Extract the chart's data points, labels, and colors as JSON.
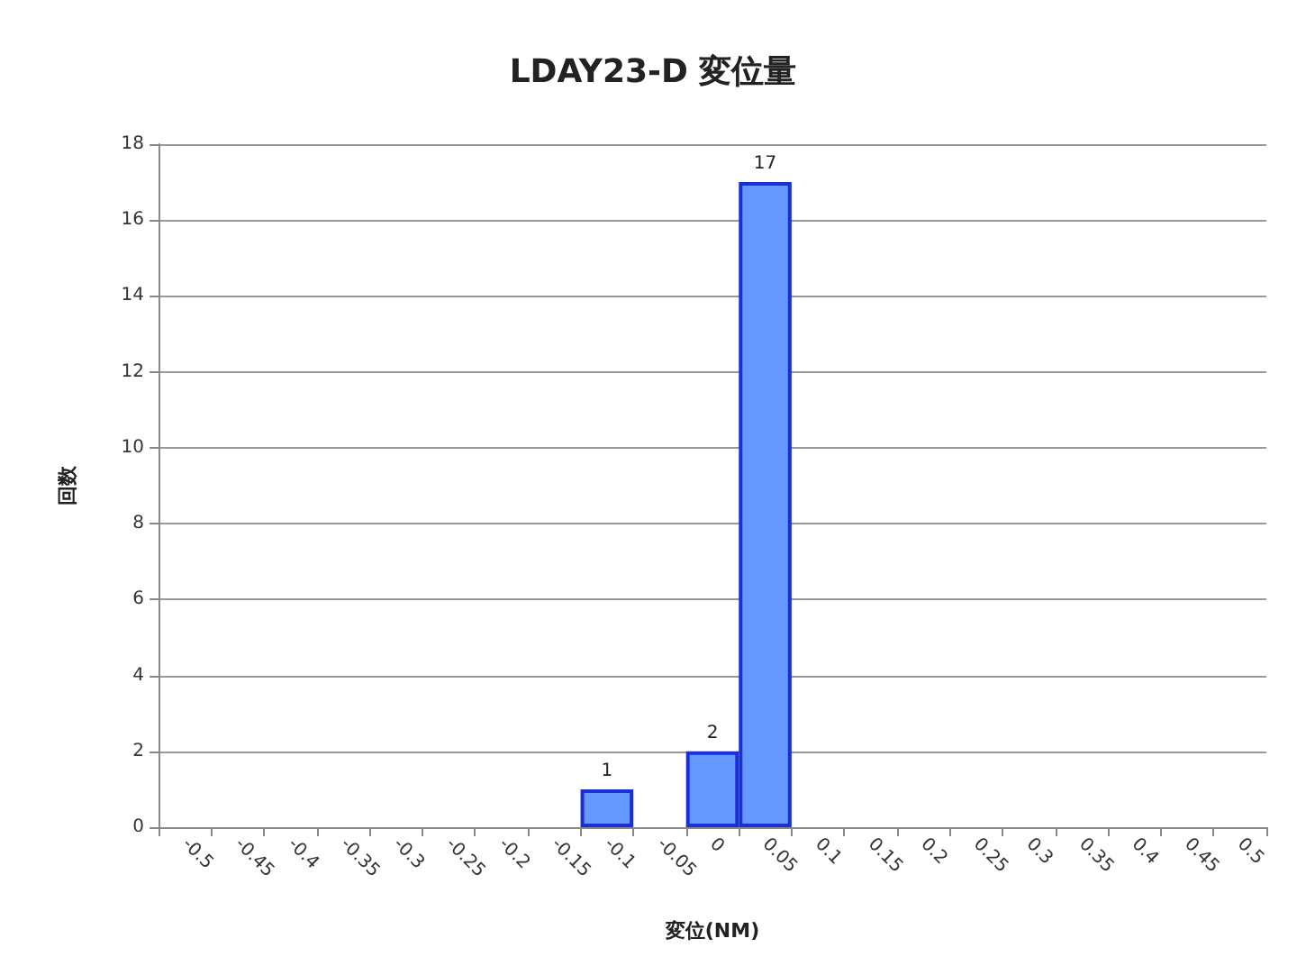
{
  "chart_data": {
    "type": "bar",
    "title": "LDAY23-D 変位量",
    "xlabel": "変位(NM)",
    "ylabel": "回数",
    "categories": [
      "-0.5",
      "-0.45",
      "-0.4",
      "-0.35",
      "-0.3",
      "-0.25",
      "-0.2",
      "-0.15",
      "-0.1",
      "-0.05",
      "0",
      "0.05",
      "0.1",
      "0.15",
      "0.2",
      "0.25",
      "0.3",
      "0.35",
      "0.4",
      "0.45",
      "0.5"
    ],
    "values": [
      0,
      0,
      0,
      0,
      0,
      0,
      0,
      0,
      1,
      0,
      2,
      17,
      0,
      0,
      0,
      0,
      0,
      0,
      0,
      0,
      0
    ],
    "value_labels": [
      null,
      null,
      null,
      null,
      null,
      null,
      null,
      null,
      "1",
      null,
      "2",
      "17",
      null,
      null,
      null,
      null,
      null,
      null,
      null,
      null,
      null
    ],
    "color": "#6699ff",
    "ylim": [
      0,
      18
    ],
    "yticks": [
      0,
      2,
      4,
      6,
      8,
      10,
      12,
      14,
      16,
      18
    ],
    "grid": "y"
  }
}
